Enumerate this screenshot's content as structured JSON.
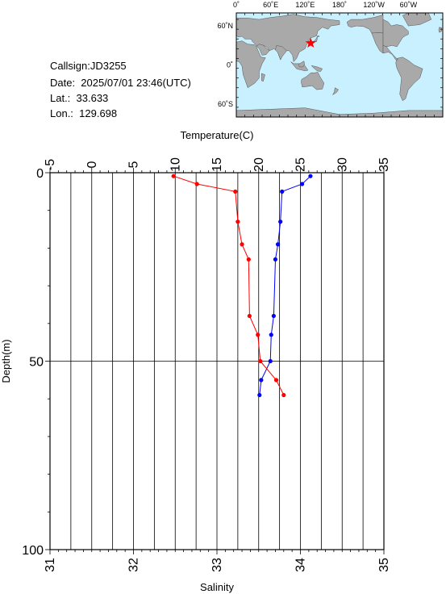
{
  "info": {
    "callsign": "Callsign:JD3255",
    "date": "Date:  2025/07/01 23:46(UTC)",
    "lat": "Lat.:  33.633",
    "lon": "Lon.:  129.698"
  },
  "map": {
    "top_ticks": [
      "0˚",
      "60˚E",
      "120˚E",
      "180˚",
      "120˚W",
      "60˚W"
    ],
    "lat_ticks": [
      "60˚N",
      "0˚",
      "60˚S"
    ],
    "marker": {
      "lat": 33.633,
      "lon": 129.698,
      "color": "#ff0000"
    },
    "ocean_color": "#c8f0ff",
    "land_color": "#a9a9a9"
  },
  "chart_data": {
    "type": "line",
    "x_top": {
      "label": "Temperature(C)",
      "range": [
        -5,
        35
      ],
      "ticks": [
        -5,
        0,
        5,
        10,
        15,
        20,
        25,
        30,
        35
      ]
    },
    "x_bottom": {
      "label": "Salinity",
      "range": [
        31,
        35
      ],
      "ticks": [
        31,
        32,
        33,
        34,
        35
      ]
    },
    "y": {
      "label": "Depth(m)",
      "range": [
        0,
        100
      ],
      "ticks": [
        0,
        50,
        100
      ],
      "inverted": true
    },
    "grid": true,
    "series": [
      {
        "axis": "temperature",
        "color": "#0000ff",
        "depth": [
          0.9,
          3,
          5,
          13,
          19,
          23,
          38,
          43,
          50,
          55,
          59
        ],
        "values": [
          26.2,
          25.2,
          22.8,
          22.6,
          22.3,
          22.0,
          21.8,
          21.5,
          21.4,
          20.3,
          20.1
        ]
      },
      {
        "axis": "salinity",
        "color": "#ff0000",
        "depth": [
          0.9,
          3,
          5,
          13,
          19,
          23,
          38,
          43,
          50,
          55,
          59
        ],
        "values": [
          32.48,
          32.76,
          33.22,
          33.25,
          33.3,
          33.38,
          33.39,
          33.49,
          33.52,
          33.71,
          33.8
        ]
      }
    ]
  }
}
